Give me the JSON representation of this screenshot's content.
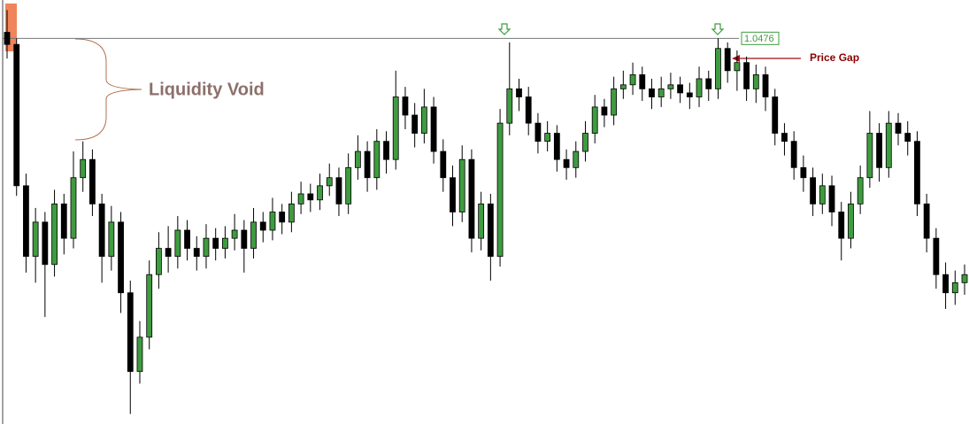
{
  "chart_data": {
    "type": "candlestick",
    "ylim": [
      1.0285,
      1.0495
    ],
    "up_color": "#3f9b3f",
    "down_color": "#000000",
    "price_line": 1.0476,
    "annotations": [
      "Liquidity Void",
      "Price Gap"
    ],
    "open": [
      1.0479,
      1.0473,
      1.0403,
      1.0368,
      1.0385,
      1.0364,
      1.0394,
      1.0377,
      1.0407,
      1.0416,
      1.0394,
      1.0368,
      1.0385,
      1.035,
      1.0311,
      1.0328,
      1.0359,
      1.0372,
      1.0368,
      1.0381,
      1.0372,
      1.0368,
      1.0377,
      1.0372,
      1.0377,
      1.0381,
      1.0372,
      1.0385,
      1.0381,
      1.039,
      1.0385,
      1.0394,
      1.0399,
      1.0396,
      1.0403,
      1.0407,
      1.0394,
      1.0412,
      1.042,
      1.0407,
      1.0425,
      1.0416,
      1.0447,
      1.0438,
      1.0429,
      1.0442,
      1.042,
      1.0407,
      1.039,
      1.0416,
      1.0377,
      1.0394,
      1.0368,
      1.0434,
      1.0451,
      1.0447,
      1.0434,
      1.0425,
      1.0429,
      1.0416,
      1.0412,
      1.042,
      1.0429,
      1.0442,
      1.0438,
      1.0451,
      1.0453,
      1.0458,
      1.0451,
      1.0447,
      1.0451,
      1.0453,
      1.0449,
      1.0447,
      1.0456,
      1.0451,
      1.0471,
      1.046,
      1.0464,
      1.0451,
      1.0458,
      1.0447,
      1.0429,
      1.0425,
      1.0412,
      1.0407,
      1.0394,
      1.0403,
      1.039,
      1.0377,
      1.0394,
      1.0407,
      1.0429,
      1.0412,
      1.0434,
      1.0429,
      1.0425,
      1.0394,
      1.0377,
      1.0359,
      1.035,
      1.0355
    ],
    "high": [
      1.049,
      1.0476,
      1.0409,
      1.0392,
      1.039,
      1.0401,
      1.0399,
      1.042,
      1.0425,
      1.0421,
      1.0399,
      1.0393,
      1.039,
      1.0356,
      1.0336,
      1.0366,
      1.038,
      1.0383,
      1.0388,
      1.0386,
      1.0378,
      1.0384,
      1.0382,
      1.0383,
      1.0389,
      1.0386,
      1.0392,
      1.039,
      1.0397,
      1.0394,
      1.04,
      1.0405,
      1.0404,
      1.0409,
      1.0414,
      1.0412,
      1.0419,
      1.0428,
      1.0425,
      1.0431,
      1.043,
      1.046,
      1.0452,
      1.0444,
      1.0451,
      1.0447,
      1.0426,
      1.0413,
      1.0423,
      1.0421,
      1.04,
      1.0399,
      1.0441,
      1.0474,
      1.0456,
      1.0452,
      1.0439,
      1.0435,
      1.0433,
      1.0421,
      1.0425,
      1.0435,
      1.0448,
      1.0446,
      1.0457,
      1.046,
      1.0464,
      1.0462,
      1.0456,
      1.0457,
      1.0459,
      1.0457,
      1.0454,
      1.0462,
      1.046,
      1.0476,
      1.0474,
      1.047,
      1.0467,
      1.0463,
      1.0462,
      1.0451,
      1.0434,
      1.043,
      1.0418,
      1.0412,
      1.0409,
      1.0408,
      1.0395,
      1.04,
      1.0413,
      1.044,
      1.0434,
      1.044,
      1.0439,
      1.0435,
      1.043,
      1.0399,
      1.0382,
      1.0365,
      1.0361,
      1.0364
    ],
    "low": [
      1.0466,
      1.0398,
      1.036,
      1.0355,
      1.0338,
      1.0358,
      1.0369,
      1.0372,
      1.04,
      1.0388,
      1.0355,
      1.0361,
      1.034,
      1.029,
      1.0305,
      1.0322,
      1.0352,
      1.036,
      1.0362,
      1.0366,
      1.0361,
      1.0362,
      1.0366,
      1.0367,
      1.0371,
      1.036,
      1.0367,
      1.0375,
      1.0376,
      1.0379,
      1.038,
      1.0389,
      1.039,
      1.0391,
      1.0398,
      1.0388,
      1.0389,
      1.0406,
      1.04,
      1.0401,
      1.0409,
      1.0411,
      1.0431,
      1.0422,
      1.0424,
      1.0414,
      1.04,
      1.0383,
      1.0385,
      1.037,
      1.0371,
      1.0356,
      1.0363,
      1.0428,
      1.044,
      1.0428,
      1.0419,
      1.042,
      1.041,
      1.0406,
      1.0407,
      1.0415,
      1.0424,
      1.0432,
      1.0433,
      1.0446,
      1.0448,
      1.0445,
      1.0441,
      1.0442,
      1.0446,
      1.0444,
      1.0441,
      1.0442,
      1.0445,
      1.0446,
      1.0454,
      1.045,
      1.0445,
      1.0444,
      1.044,
      1.0423,
      1.0418,
      1.0406,
      1.04,
      1.0388,
      1.0389,
      1.0383,
      1.0366,
      1.0372,
      1.0389,
      1.0402,
      1.0405,
      1.0407,
      1.0423,
      1.0418,
      1.0388,
      1.037,
      1.0352,
      1.0342,
      1.0344,
      1.0349
    ],
    "close": [
      1.0473,
      1.0403,
      1.0368,
      1.0385,
      1.0364,
      1.0394,
      1.0377,
      1.0407,
      1.0416,
      1.0394,
      1.0368,
      1.0385,
      1.035,
      1.0311,
      1.0328,
      1.0359,
      1.0372,
      1.0368,
      1.0381,
      1.0372,
      1.0368,
      1.0377,
      1.0372,
      1.0377,
      1.0381,
      1.0372,
      1.0385,
      1.0381,
      1.039,
      1.0385,
      1.0394,
      1.0399,
      1.0396,
      1.0403,
      1.0407,
      1.0394,
      1.0412,
      1.042,
      1.0407,
      1.0425,
      1.0416,
      1.0447,
      1.0438,
      1.0429,
      1.0442,
      1.042,
      1.0407,
      1.039,
      1.0416,
      1.0377,
      1.0394,
      1.0368,
      1.0434,
      1.0451,
      1.0447,
      1.0434,
      1.0425,
      1.0429,
      1.0416,
      1.0412,
      1.042,
      1.0429,
      1.0442,
      1.0438,
      1.0451,
      1.0453,
      1.0458,
      1.0451,
      1.0447,
      1.0451,
      1.0453,
      1.0449,
      1.0447,
      1.0456,
      1.0451,
      1.0471,
      1.046,
      1.0464,
      1.0451,
      1.0458,
      1.0447,
      1.0429,
      1.0425,
      1.0412,
      1.0407,
      1.0394,
      1.0403,
      1.039,
      1.0377,
      1.0394,
      1.0407,
      1.0429,
      1.0412,
      1.0434,
      1.0429,
      1.0425,
      1.0394,
      1.0377,
      1.0359,
      1.035,
      1.0355,
      1.0359
    ]
  }
}
